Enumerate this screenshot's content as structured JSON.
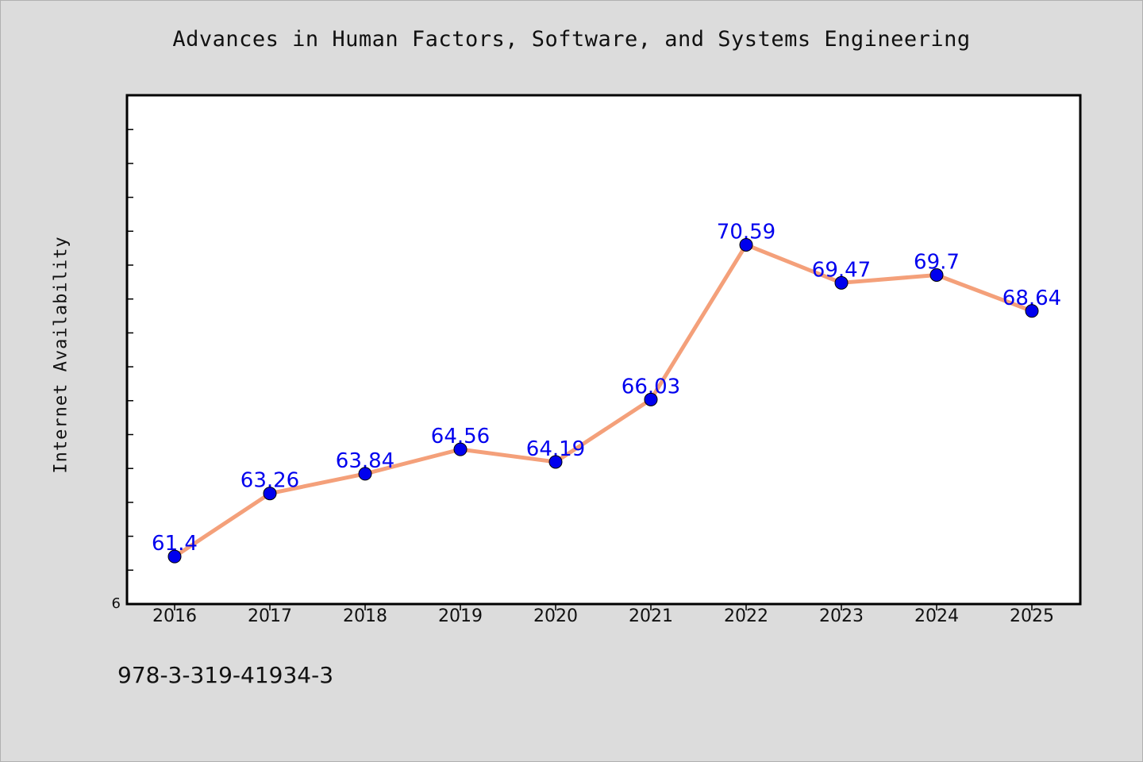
{
  "chart_data": {
    "type": "line",
    "title": "Advances in Human Factors, Software, and Systems Engineering",
    "xlabel": "",
    "ylabel": "Internet Availability",
    "categories": [
      "2016",
      "2017",
      "2018",
      "2019",
      "2020",
      "2021",
      "2022",
      "2023",
      "2024",
      "2025"
    ],
    "series": [
      {
        "values": [
          61.4,
          63.26,
          63.84,
          64.56,
          64.19,
          66.03,
          70.59,
          69.47,
          69.7,
          68.64
        ],
        "labels": [
          "61.4",
          "63.26",
          "63.84",
          "64.56",
          "64.19",
          "66.03",
          "70.59",
          "69.47",
          "69.7",
          "68.64"
        ],
        "line_color": "#f4a07a",
        "marker_color": "#0000ee"
      }
    ],
    "y_tick_labels": [
      "6"
    ],
    "grid": false,
    "legend": "none"
  },
  "footer_caption": "978-3-319-41934-3"
}
